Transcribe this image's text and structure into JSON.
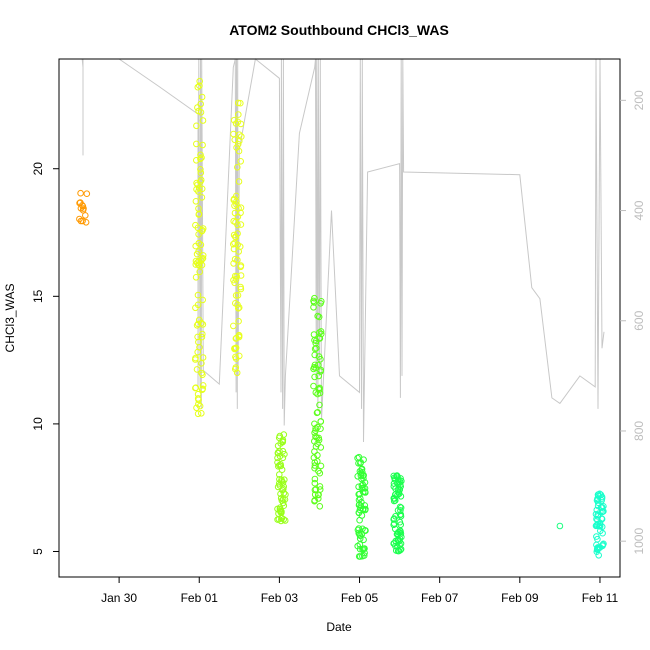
{
  "chart_data": {
    "type": "scatter",
    "title": "ATOM2 Southbound CHCl3_WAS",
    "xlabel": "Date",
    "ylabel": "CHCl3_WAS",
    "x_ticks": [
      "Jan 30",
      "Feb 01",
      "Feb 03",
      "Feb 05",
      "Feb 07",
      "Feb 09",
      "Feb 11"
    ],
    "xlim_days": [
      -1.5,
      12.5
    ],
    "x_tick_days": [
      0,
      2,
      4,
      6,
      8,
      10,
      12
    ],
    "y_ticks": [
      5,
      10,
      15,
      20
    ],
    "ylim": [
      4.0,
      24.3
    ],
    "secondary_axis": {
      "label": "",
      "ticks": [
        200,
        400,
        600,
        800,
        1000
      ],
      "reversed": true,
      "lim": [
        125,
        1065
      ],
      "color": "#bdbdbd"
    },
    "grid": false,
    "color_scale": "rainbow by date (orange to cyan)",
    "series": [
      {
        "day": -0.9,
        "spread": [
          17.8,
          19.1
        ],
        "n": 14,
        "color": "#ff9900"
      },
      {
        "day": 2.0,
        "spread": [
          10.3,
          23.8
        ],
        "n": 90,
        "color": "#e6ff1a"
      },
      {
        "day": 2.95,
        "spread": [
          12.0,
          23.0
        ],
        "n": 80,
        "color": "#e8ff1f"
      },
      {
        "day": 4.05,
        "spread": [
          6.2,
          9.7
        ],
        "n": 60,
        "color": "#99ff1a"
      },
      {
        "day": 4.95,
        "spread": [
          6.4,
          15.0
        ],
        "n": 80,
        "color": "#5cff1a"
      },
      {
        "day": 6.05,
        "spread": [
          4.7,
          8.8
        ],
        "n": 70,
        "color": "#33ff33"
      },
      {
        "day": 6.95,
        "spread": [
          5.0,
          8.0
        ],
        "n": 70,
        "color": "#1aff4d"
      },
      {
        "day": 11.0,
        "spread": [
          6.0,
          6.0
        ],
        "n": 1,
        "color": "#1aff80"
      },
      {
        "day": 12.0,
        "spread": [
          4.8,
          7.3
        ],
        "n": 55,
        "color": "#1affcc"
      }
    ],
    "pressure_trace": [
      [
        -0.92,
        125
      ],
      [
        -0.9,
        140
      ],
      [
        -0.9,
        300
      ],
      [
        -0.9,
        125
      ],
      [
        0.0,
        125
      ],
      [
        1.0,
        175
      ],
      [
        1.97,
        225
      ],
      [
        1.97,
        725
      ],
      [
        1.99,
        125
      ],
      [
        2.02,
        720
      ],
      [
        2.03,
        125
      ],
      [
        2.05,
        760
      ],
      [
        2.06,
        125
      ],
      [
        2.1,
        690
      ],
      [
        2.5,
        715
      ],
      [
        2.85,
        140
      ],
      [
        2.9,
        125
      ],
      [
        2.92,
        730
      ],
      [
        2.93,
        125
      ],
      [
        2.95,
        760
      ],
      [
        2.96,
        125
      ],
      [
        2.97,
        700
      ],
      [
        3.0,
        290
      ],
      [
        3.4,
        125
      ],
      [
        4.0,
        160
      ],
      [
        4.04,
        730
      ],
      [
        4.05,
        125
      ],
      [
        4.08,
        760
      ],
      [
        4.1,
        125
      ],
      [
        4.12,
        790
      ],
      [
        4.15,
        700
      ],
      [
        4.5,
        260
      ],
      [
        4.88,
        140
      ],
      [
        4.9,
        125
      ],
      [
        4.92,
        730
      ],
      [
        4.93,
        125
      ],
      [
        4.96,
        760
      ],
      [
        4.97,
        125
      ],
      [
        5.0,
        700
      ],
      [
        5.02,
        125
      ],
      [
        5.05,
        780
      ],
      [
        5.3,
        400
      ],
      [
        5.5,
        700
      ],
      [
        6.0,
        730
      ],
      [
        6.02,
        125
      ],
      [
        6.05,
        760
      ],
      [
        6.07,
        125
      ],
      [
        6.1,
        820
      ],
      [
        6.2,
        330
      ],
      [
        7.0,
        315
      ],
      [
        7.02,
        740
      ],
      [
        7.04,
        125
      ],
      [
        7.06,
        700
      ],
      [
        7.08,
        125
      ],
      [
        7.1,
        330
      ],
      [
        10.0,
        335
      ],
      [
        10.3,
        540
      ],
      [
        10.5,
        560
      ],
      [
        10.8,
        740
      ],
      [
        11.0,
        750
      ],
      [
        11.5,
        700
      ],
      [
        11.88,
        720
      ],
      [
        11.9,
        125
      ],
      [
        11.95,
        760
      ],
      [
        12.0,
        125
      ],
      [
        12.05,
        650
      ],
      [
        12.1,
        620
      ]
    ]
  }
}
